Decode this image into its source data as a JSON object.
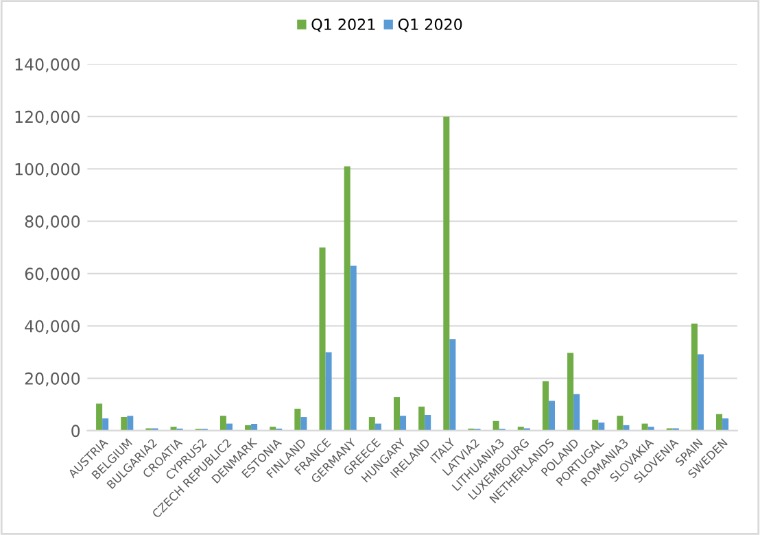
{
  "chart_data": {
    "type": "bar",
    "categories": [
      "AUSTRIA",
      "BELGIUM",
      "BULGARIA2",
      "CROATIA",
      "CYPRUS2",
      "CZECH REPUBLIC2",
      "DENMARK",
      "ESTONIA",
      "FINLAND",
      "FRANCE",
      "GERMANY",
      "GREECE",
      "HUNGARY",
      "IRELAND",
      "ITALY",
      "LATVIA2",
      "LITHUANIA3",
      "LUXEMBOURG",
      "NETHERLANDS",
      "POLAND",
      "PORTUGAL",
      "ROMANIA3",
      "SLOVAKIA",
      "SLOVENIA",
      "SPAIN",
      "SWEDEN"
    ],
    "series": [
      {
        "name": "Q1 2021",
        "color": "#70ad47",
        "values": [
          10300,
          5200,
          900,
          1500,
          700,
          5700,
          2100,
          1500,
          8400,
          70000,
          101000,
          5200,
          12800,
          9200,
          120000,
          800,
          3700,
          1500,
          18900,
          29700,
          4200,
          5700,
          2700,
          900,
          40900,
          6300
        ]
      },
      {
        "name": "Q1 2020",
        "color": "#5b9bd5",
        "values": [
          4700,
          5700,
          900,
          800,
          700,
          2700,
          2600,
          800,
          5200,
          30000,
          63000,
          2700,
          5700,
          6000,
          35000,
          700,
          700,
          900,
          11400,
          14000,
          3100,
          2100,
          1500,
          900,
          29200,
          4700
        ]
      }
    ],
    "ylim": [
      0,
      140000
    ],
    "yticks": [
      0,
      {
        "value": 20000,
        "label": "20,000"
      },
      {
        "value": 40000,
        "label": "40,000"
      },
      {
        "value": 60000,
        "label": "60,000"
      },
      {
        "value": 80000,
        "label": "80,000"
      },
      {
        "value": 100000,
        "label": "100,000"
      },
      {
        "value": 120000,
        "label": "120,000"
      },
      {
        "value": 140000,
        "label": "140,000"
      }
    ],
    "grid": "y",
    "legend": "top"
  }
}
